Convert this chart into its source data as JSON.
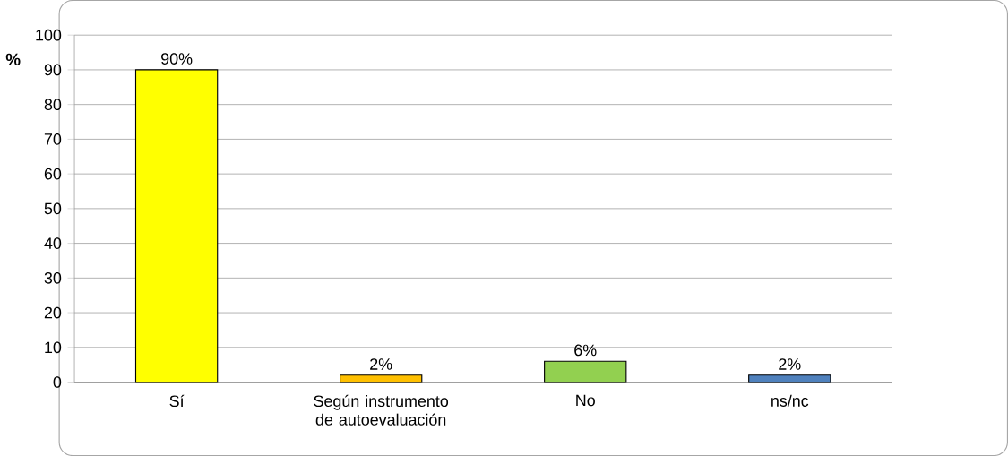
{
  "chart_data": {
    "type": "bar",
    "ylabel": "%",
    "categories": [
      "Sí",
      "Según instrumento de autoevaluación",
      "No",
      "ns/nc"
    ],
    "values": [
      90,
      2,
      6,
      2
    ],
    "colors": [
      "#ffff00",
      "#ffc000",
      "#92d050",
      "#4f81bd"
    ],
    "value_labels": [
      "90%",
      "2%",
      "6%",
      "2%"
    ],
    "ylim": [
      0,
      100
    ],
    "yticks": [
      0,
      10,
      20,
      30,
      40,
      50,
      60,
      70,
      80,
      90,
      100
    ],
    "grid": "y"
  }
}
